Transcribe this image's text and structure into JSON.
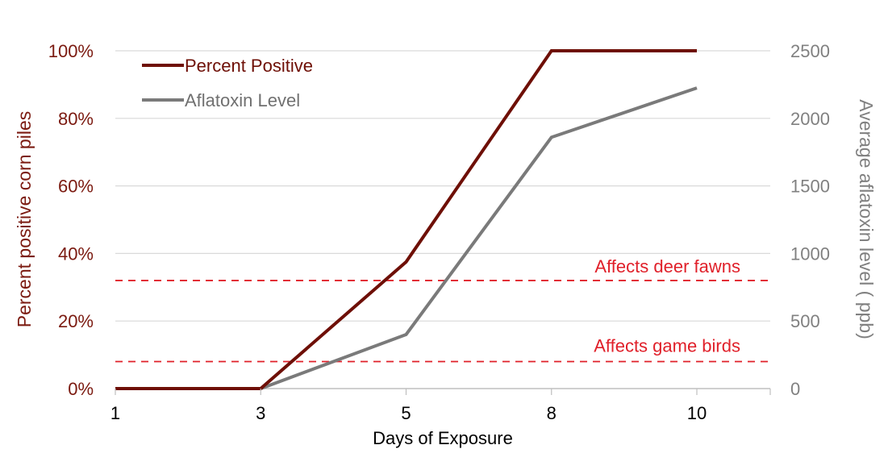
{
  "chart_data": {
    "type": "line",
    "xlabel": "Days of Exposure",
    "ylabel_left": "Percent positive corn piles",
    "ylabel_right": "Average aflatoxin level ( ppb)",
    "categories": [
      "1",
      "3",
      "5",
      "8",
      "10"
    ],
    "y_left": {
      "range": [
        0,
        100
      ],
      "ticks": [
        "0%",
        "20%",
        "40%",
        "60%",
        "80%",
        "100%"
      ],
      "color": "#7b1a10"
    },
    "y_right": {
      "range": [
        0,
        2500
      ],
      "ticks": [
        "0",
        "500",
        "1000",
        "1500",
        "2000",
        "2500"
      ],
      "color": "#808080"
    },
    "grid": true,
    "legend_position": "top-left",
    "series": [
      {
        "name": "Percent Positive",
        "axis": "left",
        "color": "#6e0f06",
        "values": [
          0,
          0,
          37.5,
          100,
          100
        ]
      },
      {
        "name": "Aflatoxin Level",
        "axis": "right",
        "color": "#7a7a7a",
        "values": [
          0,
          0,
          400,
          1860,
          2225
        ]
      }
    ],
    "reference_lines": [
      {
        "label": "Affects deer fawns",
        "axis": "right",
        "value": 800,
        "color": "#e0202a"
      },
      {
        "label": "Affects game birds",
        "axis": "right",
        "value": 200,
        "color": "#e0202a"
      }
    ]
  }
}
